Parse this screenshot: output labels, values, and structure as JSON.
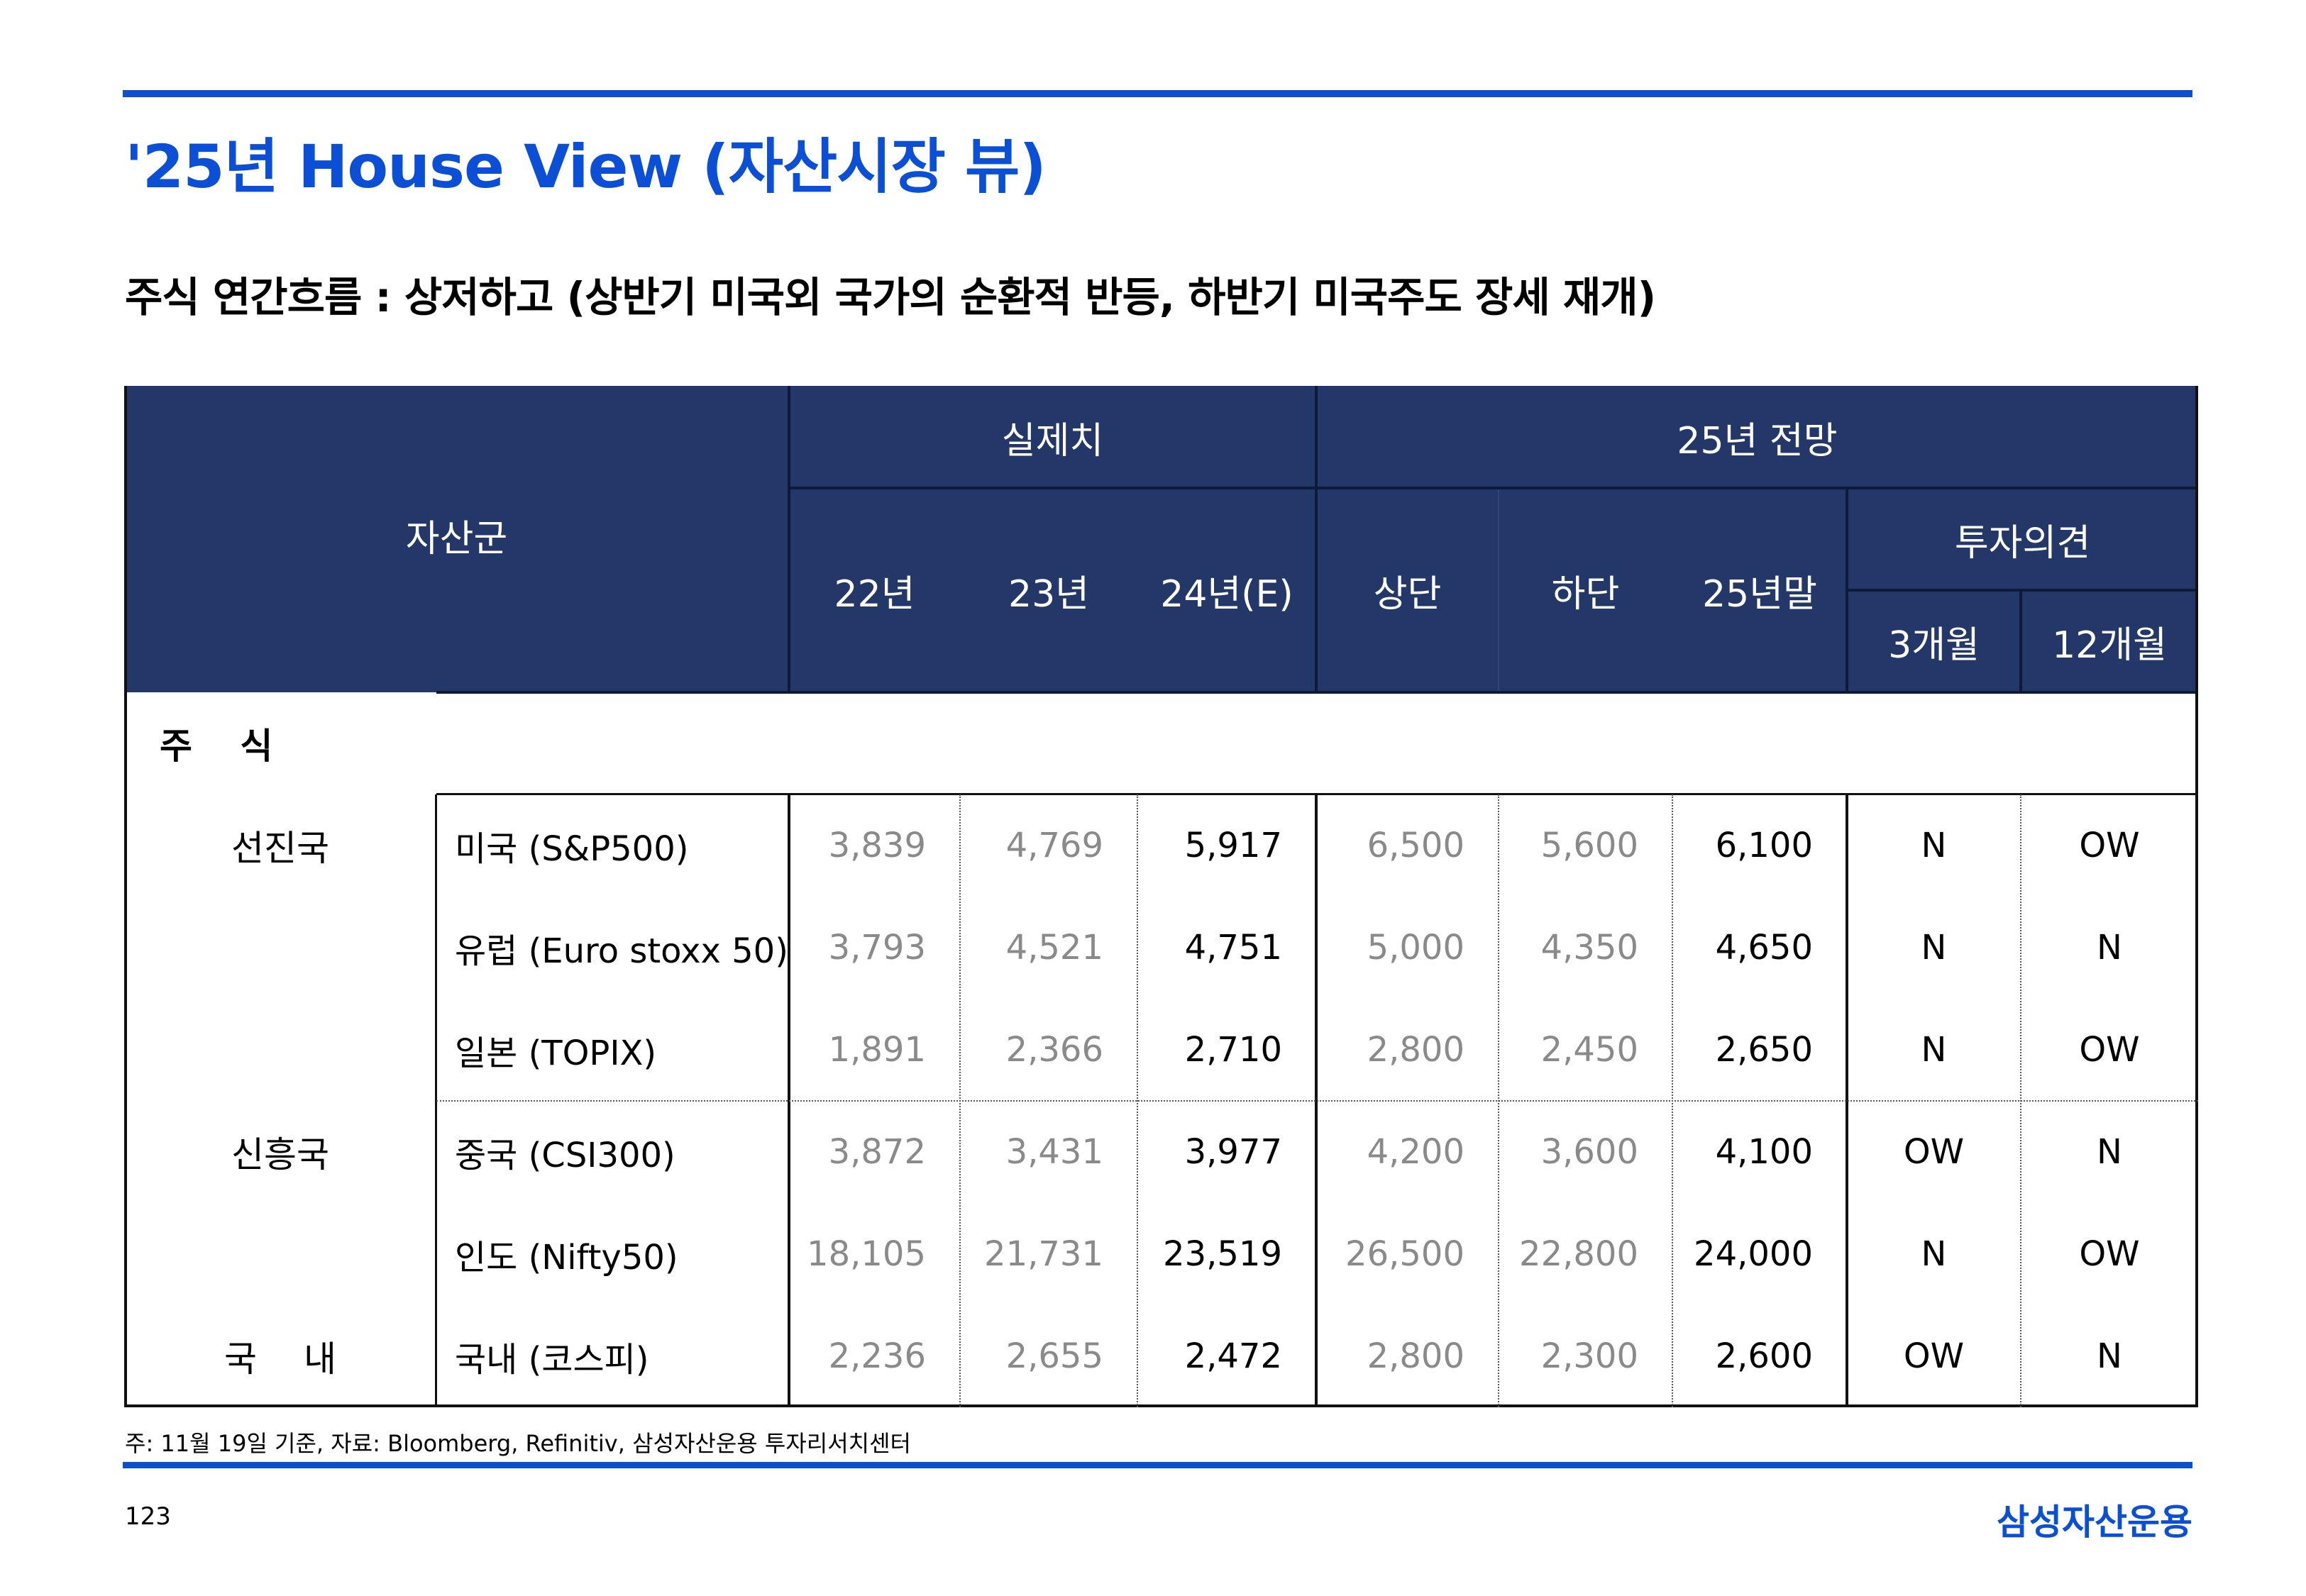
{
  "title": "'25년 House View (자산시장 뷰)",
  "subtitle": "주식 연간흐름 : 상저하고 (상반기 미국외 국가의 순환적 반등, 하반기 미국주도 장세 재개)",
  "table": {
    "header": {
      "asset_class": "자산군",
      "actual_group": "실제치",
      "forecast_group": "25년 전망",
      "cols": [
        "22년",
        "23년",
        "24년(E)",
        "상단",
        "하단",
        "25년말"
      ],
      "opinion_group": "투자의견",
      "opinion_cols": [
        "3개월",
        "12개월"
      ]
    },
    "category": "주　 식",
    "groups": [
      "선진국",
      "신흥국",
      "국　 내"
    ],
    "rows": [
      {
        "name": "미국 (S&P500)",
        "v22": "3,839",
        "v23": "4,769",
        "v24": "5,917",
        "high": "6,500",
        "low": "5,600",
        "end": "6,100",
        "m3": "N",
        "m12": "OW"
      },
      {
        "name": "유럽 (Euro stoxx 50)",
        "v22": "3,793",
        "v23": "4,521",
        "v24": "4,751",
        "high": "5,000",
        "low": "4,350",
        "end": "4,650",
        "m3": "N",
        "m12": "N"
      },
      {
        "name": "일본 (TOPIX)",
        "v22": "1,891",
        "v23": "2,366",
        "v24": "2,710",
        "high": "2,800",
        "low": "2,450",
        "end": "2,650",
        "m3": "N",
        "m12": "OW"
      },
      {
        "name": "중국 (CSI300)",
        "v22": "3,872",
        "v23": "3,431",
        "v24": "3,977",
        "high": "4,200",
        "low": "3,600",
        "end": "4,100",
        "m3": "OW",
        "m12": "N"
      },
      {
        "name": "인도 (Nifty50)",
        "v22": "18,105",
        "v23": "21,731",
        "v24": "23,519",
        "high": "26,500",
        "low": "22,800",
        "end": "24,000",
        "m3": "N",
        "m12": "OW"
      },
      {
        "name": "국내 (코스피)",
        "v22": "2,236",
        "v23": "2,655",
        "v24": "2,472",
        "high": "2,800",
        "low": "2,300",
        "end": "2,600",
        "m3": "OW",
        "m12": "N"
      }
    ]
  },
  "footnote": "주: 11월 19일 기준, 자료: Bloomberg, Refinitiv, 삼성자산운용 투자리서치센터",
  "page_number": "123",
  "logo": "삼성자산운용",
  "colors": {
    "accent": "#0a4fd6",
    "header_bg": "#233868"
  }
}
